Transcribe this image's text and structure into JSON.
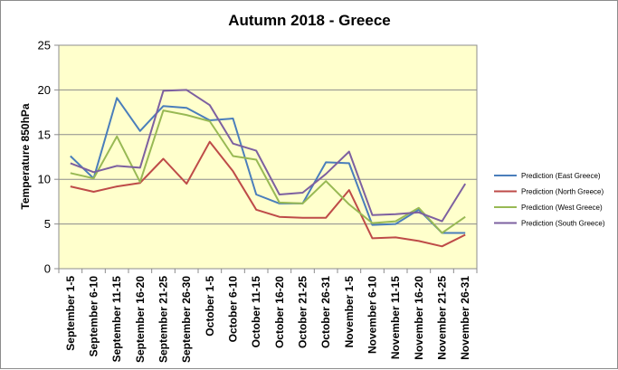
{
  "chart_data": {
    "type": "line",
    "title": "Autumn 2018 - Greece",
    "xlabel": "",
    "ylabel": "Temperature 850hPa",
    "ylim": [
      0,
      25
    ],
    "yticks": [
      0,
      5,
      10,
      15,
      20,
      25
    ],
    "grid": true,
    "legend_position": "right",
    "plot_background": "#ffffcc",
    "categories": [
      "September 1-5",
      "September 6-10",
      "September 11-15",
      "September 16-20",
      "September 21-25",
      "September 26-30",
      "October 1-5",
      "October 6-10",
      "October 11-15",
      "October 16-20",
      "October 21-25",
      "October 26-31",
      "November 1-5",
      "November 6-10",
      "November 11-15",
      "November 16-20",
      "November 21-25",
      "November 26-31"
    ],
    "series": [
      {
        "name": "Prediction (East Greece)",
        "color": "#4a7ebb",
        "values": [
          12.6,
          10.1,
          19.1,
          15.4,
          18.2,
          18.0,
          16.6,
          16.8,
          8.3,
          7.3,
          7.3,
          11.9,
          11.8,
          4.9,
          5.0,
          6.6,
          4.0,
          4.0
        ]
      },
      {
        "name": "Prediction (North Greece)",
        "color": "#be4b48",
        "values": [
          9.2,
          8.6,
          9.2,
          9.6,
          12.3,
          9.5,
          14.2,
          10.9,
          6.6,
          5.8,
          5.7,
          5.7,
          8.8,
          3.4,
          3.5,
          3.1,
          2.5,
          3.8
        ]
      },
      {
        "name": "Prediction (West Greece)",
        "color": "#98b954",
        "values": [
          10.7,
          10.1,
          14.8,
          9.7,
          17.7,
          17.2,
          16.5,
          12.6,
          12.2,
          7.4,
          7.3,
          9.8,
          7.2,
          5.1,
          5.3,
          6.8,
          4.0,
          5.8
        ]
      },
      {
        "name": "Prediction (South Greece)",
        "color": "#7d60a0",
        "values": [
          11.8,
          10.8,
          11.5,
          11.3,
          19.9,
          20.0,
          18.3,
          14.0,
          13.2,
          8.3,
          8.5,
          10.6,
          13.1,
          6.0,
          6.1,
          6.3,
          5.3,
          9.5
        ]
      }
    ]
  }
}
